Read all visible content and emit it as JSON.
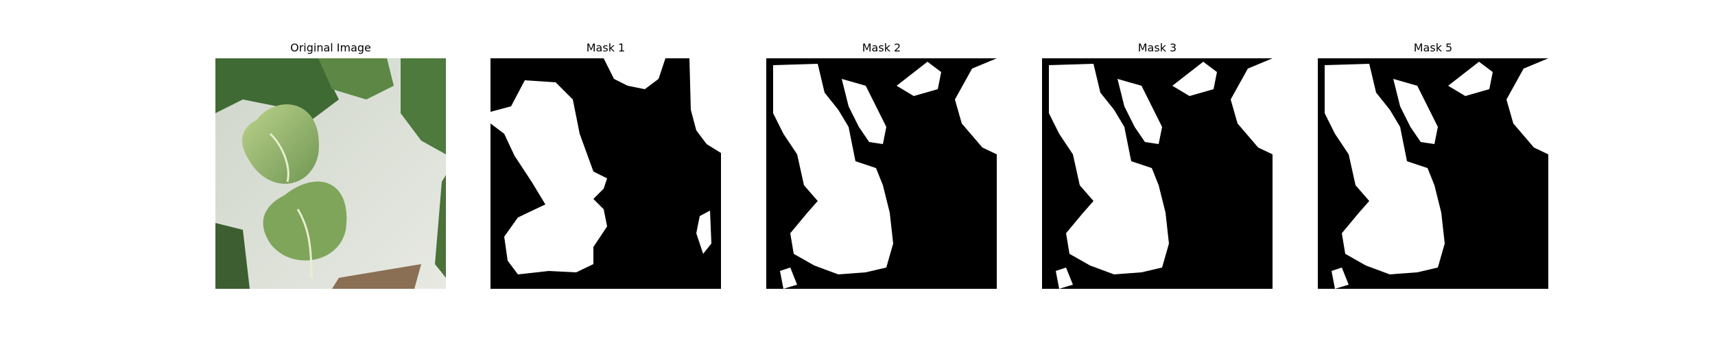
{
  "panels": [
    {
      "title": "Original Image"
    },
    {
      "title": "Mask 1"
    },
    {
      "title": "Mask 2"
    },
    {
      "title": "Mask 3"
    },
    {
      "title": "Mask 5"
    }
  ],
  "colors": {
    "background": "#ffffff",
    "mask_background": "#000000",
    "mask_foreground": "#ffffff",
    "leaf_dark": "#4d7a3e",
    "leaf_light": "#b9cf86",
    "wall": "#d9ddd2"
  }
}
